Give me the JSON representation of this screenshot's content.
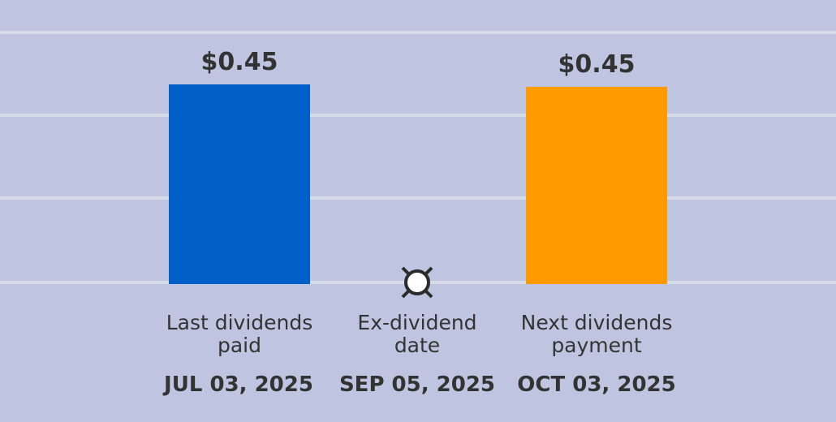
{
  "chart_data": {
    "type": "bar",
    "categories": [
      {
        "label_lines": [
          "Last dividends",
          "paid"
        ],
        "date": "JUL 03, 2025",
        "value": 0.45,
        "value_label": "$0.45",
        "color": "#005fc8"
      },
      {
        "label_lines": [
          "Ex-dividend",
          "date"
        ],
        "date": "SEP 05, 2025",
        "value": null,
        "value_label": "",
        "marker": "ex-dividend-marker"
      },
      {
        "label_lines": [
          "Next dividends",
          "payment"
        ],
        "date": "OCT 03, 2025",
        "value": 0.45,
        "value_label": "$0.45",
        "color": "#ff9a00"
      }
    ],
    "grid": true,
    "colors": {
      "background": "#bfc5e0",
      "grid": "#d6dbe8",
      "text": "#333333"
    }
  }
}
